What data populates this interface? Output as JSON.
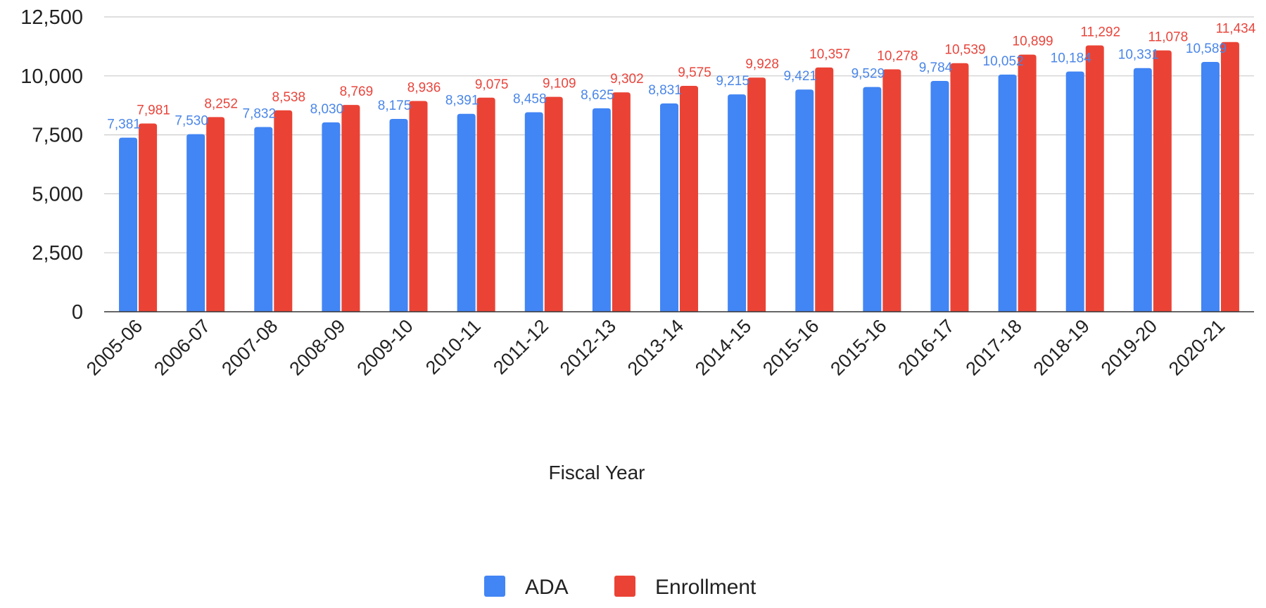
{
  "chart_data": {
    "type": "bar",
    "title": "",
    "xlabel": "Fiscal Year",
    "ylabel": "",
    "ylim": [
      0,
      12500
    ],
    "yticks": [
      "0",
      "2,500",
      "5,000",
      "7,500",
      "10,000",
      "12,500"
    ],
    "yticks_values": [
      0,
      2500,
      5000,
      7500,
      10000,
      12500
    ],
    "grid": true,
    "legend_position": "bottom",
    "categories": [
      "2005-06",
      "2006-07",
      "2007-08",
      "2008-09",
      "2009-10",
      "2010-11",
      "2011-12",
      "2012-13",
      "2013-14",
      "2014-15",
      "2015-16",
      "2015-16",
      "2016-17",
      "2017-18",
      "2018-19",
      "2019-20",
      "2020-21"
    ],
    "series": [
      {
        "name": "ADA",
        "color": "#4285f4",
        "label_color": "#4a86e8",
        "values": [
          7381,
          7530,
          7832,
          8030,
          8175,
          8391,
          8458,
          8625,
          8831,
          9215,
          9421,
          9529,
          9784,
          10052,
          10184,
          10331,
          10589
        ],
        "labels": [
          "7,381",
          "7,530",
          "7,832",
          "8,030",
          "8,175",
          "8,391",
          "8,458",
          "8,625",
          "8,831",
          "9,215",
          "9,421",
          "9,529",
          "9,784",
          "10,052",
          "10,184",
          "10,331",
          "10,589"
        ]
      },
      {
        "name": "Enrollment",
        "color": "#ea4335",
        "label_color": "#e8453c",
        "values": [
          7981,
          8252,
          8538,
          8769,
          8936,
          9075,
          9109,
          9302,
          9575,
          9928,
          10357,
          10278,
          10539,
          10899,
          11292,
          11078,
          11434
        ],
        "labels": [
          "7,981",
          "8,252",
          "8,538",
          "8,769",
          "8,936",
          "9,075",
          "9,109",
          "9,302",
          "9,575",
          "9,928",
          "10,357",
          "10,278",
          "10,539",
          "10,899",
          "11,292",
          "11,078",
          "11,434"
        ]
      }
    ]
  }
}
